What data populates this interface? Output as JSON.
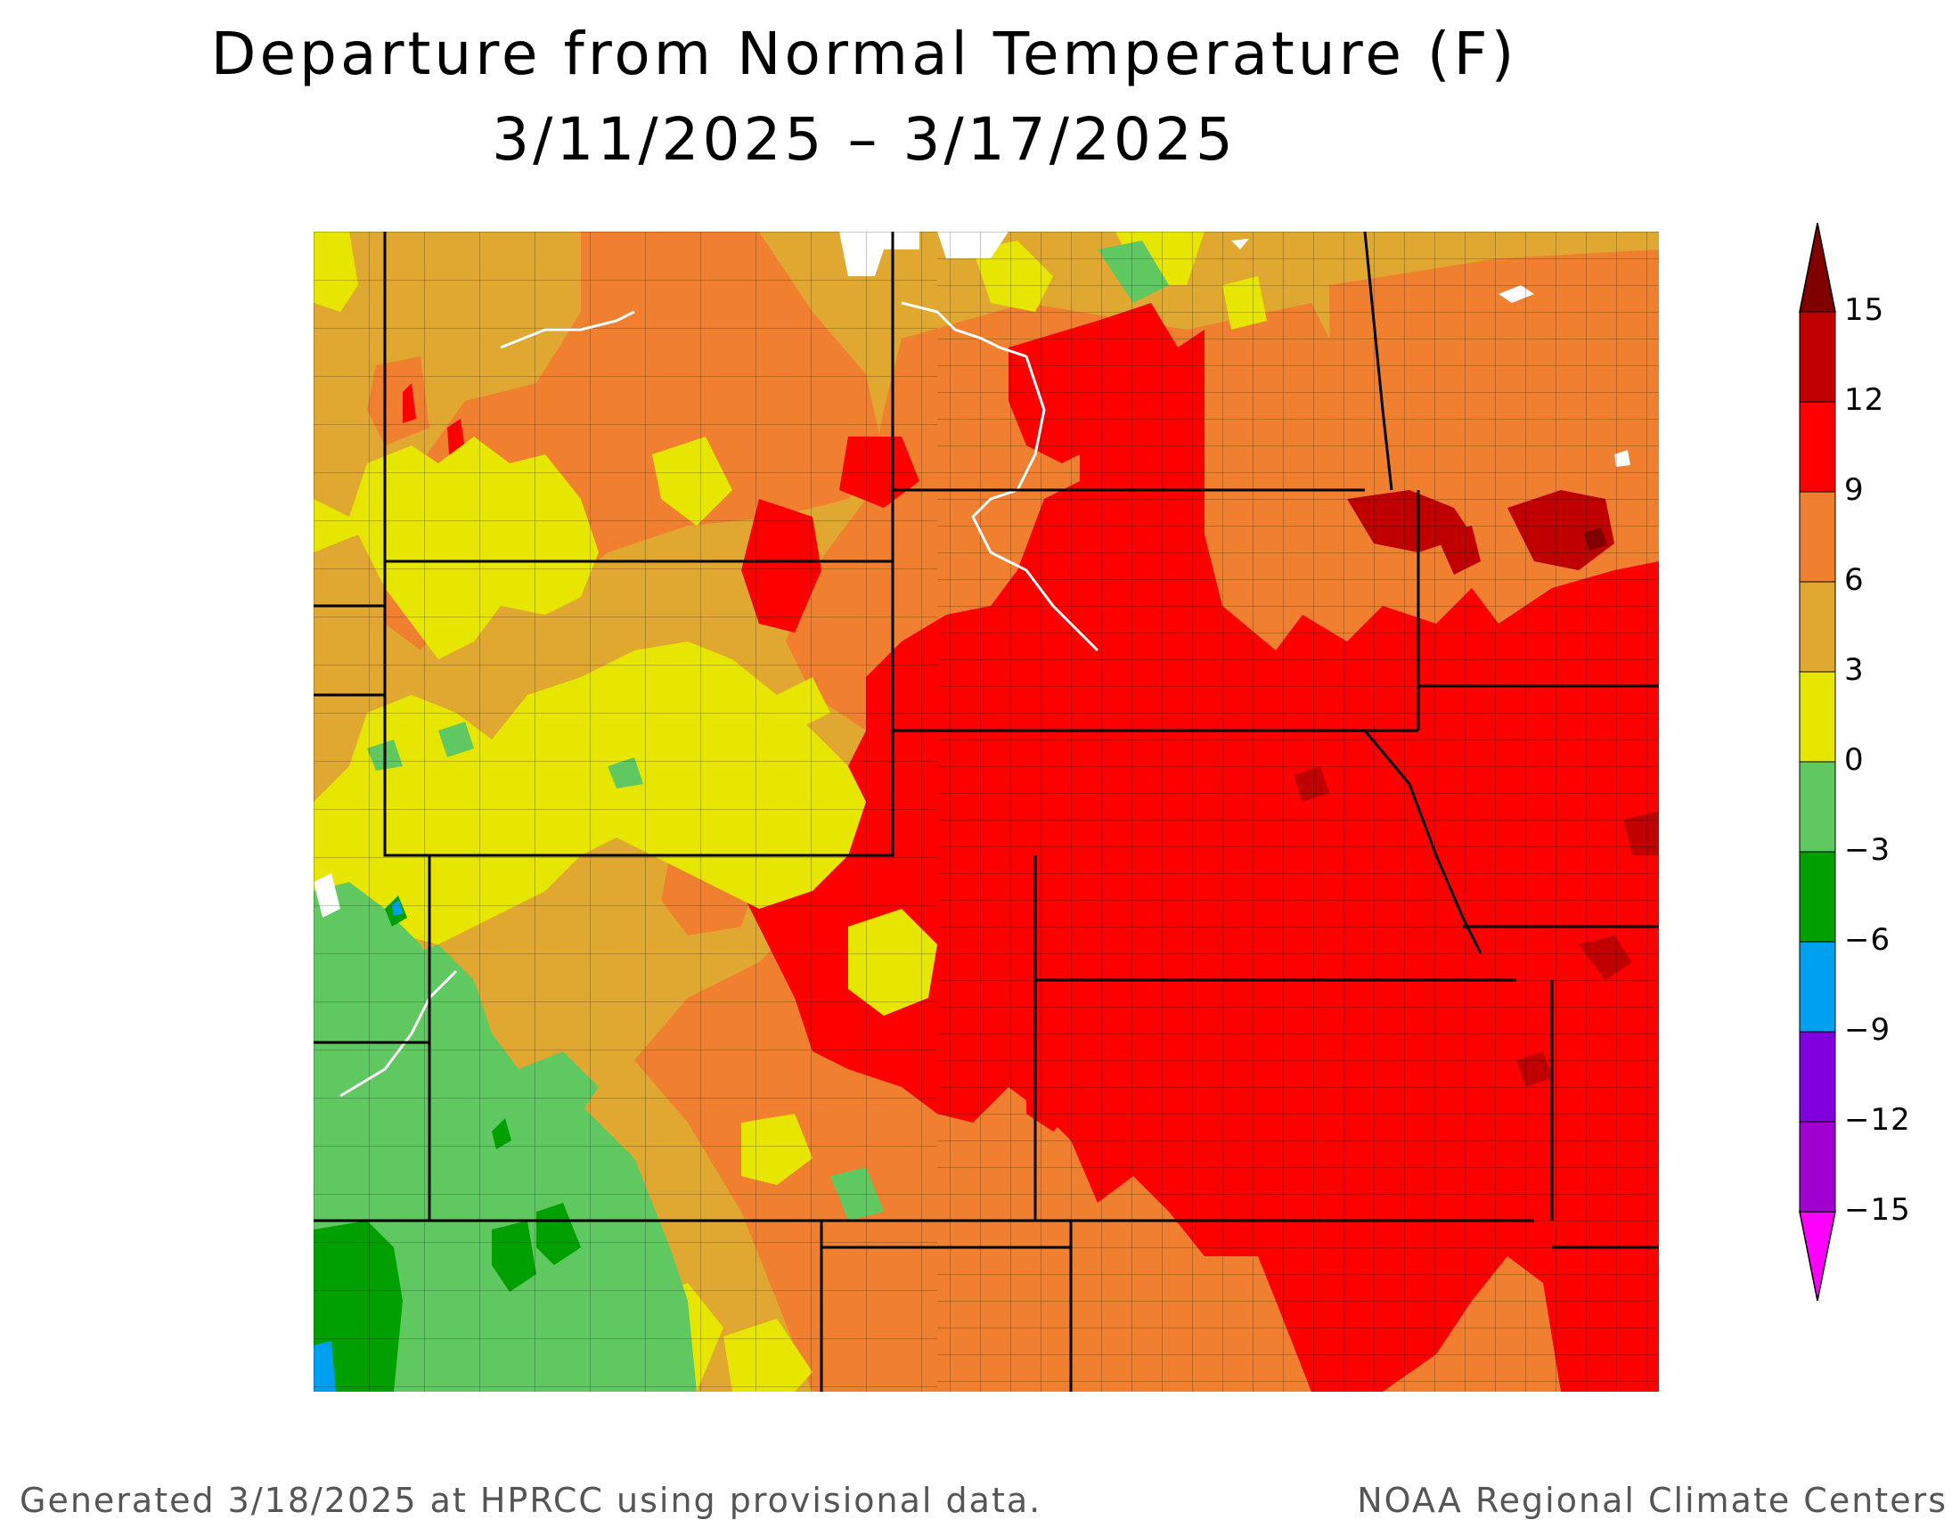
{
  "title": {
    "line1": "Departure from Normal Temperature (F)",
    "line2": "3/11/2025 – 3/17/2025"
  },
  "legend": {
    "labels": [
      "15",
      "12",
      "9",
      "6",
      "3",
      "0",
      "−3",
      "−6",
      "−9",
      "−12",
      "−15"
    ],
    "bins": [
      {
        "range": "12 to 15",
        "color": "#C00000"
      },
      {
        "range": "9 to 12",
        "color": "#FF0000"
      },
      {
        "range": "6 to 9",
        "color": "#F08030"
      },
      {
        "range": "3 to 6",
        "color": "#E0A830"
      },
      {
        "range": "0 to 3",
        "color": "#E6E600"
      },
      {
        "range": "-3 to 0",
        "color": "#60C860"
      },
      {
        "range": "-6 to -3",
        "color": "#00A000"
      },
      {
        "range": "-9 to -6",
        "color": "#00A0F0"
      },
      {
        "range": "-12 to -9",
        "color": "#8000E0"
      },
      {
        "range": "-15 to -12",
        "color": "#A000D0"
      }
    ],
    "above_max_color": "#800000",
    "below_min_color": "#FF00FF"
  },
  "colors": {
    "state_border": "#000000",
    "county_border": "#000000",
    "water": "#FFFFFF"
  },
  "footer": {
    "left": "Generated 3/18/2025 at HPRCC using provisional data.",
    "right": "NOAA Regional Climate Centers"
  }
}
